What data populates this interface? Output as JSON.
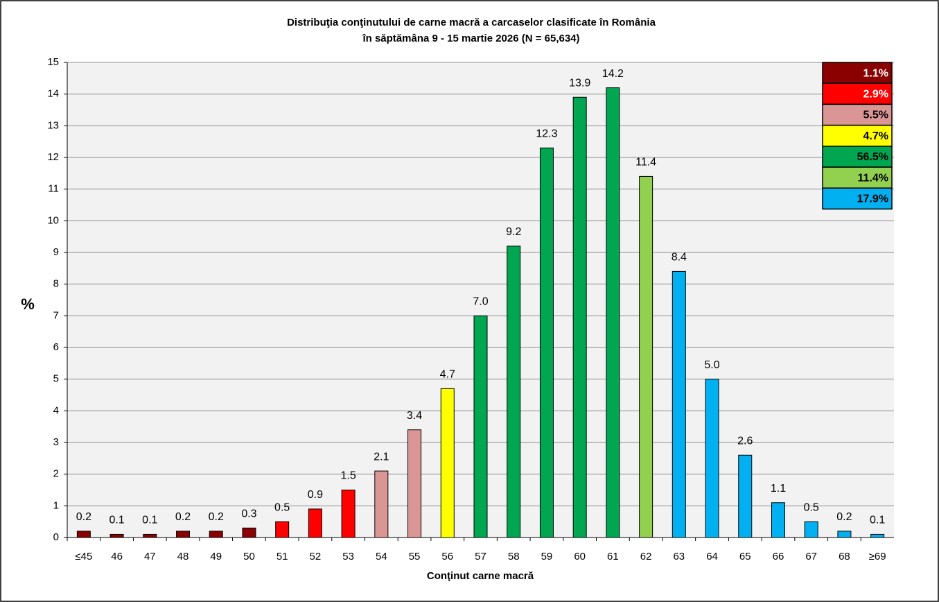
{
  "chart_data": {
    "type": "bar",
    "title": "Distribuţia conţinutului de carne macră a carcaselor clasificate în România",
    "subtitle": "în săptămâna 9 - 15 martie 2026 (N = 65,634)",
    "x_label": "Conţinut  carne macră",
    "y_label": "%",
    "categories": [
      "≤45",
      "46",
      "47",
      "48",
      "49",
      "50",
      "51",
      "52",
      "53",
      "54",
      "55",
      "56",
      "57",
      "58",
      "59",
      "60",
      "61",
      "62",
      "63",
      "64",
      "65",
      "66",
      "67",
      "68",
      "≥69"
    ],
    "values": [
      0.2,
      0.1,
      0.1,
      0.2,
      0.2,
      0.3,
      0.5,
      0.9,
      1.5,
      2.1,
      3.4,
      4.7,
      7.0,
      9.2,
      12.3,
      13.9,
      14.2,
      11.4,
      8.4,
      5.0,
      2.6,
      1.1,
      0.5,
      0.2,
      0.1
    ],
    "value_labels": [
      "0.2",
      "0.1",
      "0.1",
      "0.2",
      "0.2",
      "0.3",
      "0.5",
      "0.9",
      "1.5",
      "2.1",
      "3.4",
      "4.7",
      "7.0",
      "9.2",
      "12.3",
      "13.9",
      "14.2",
      "11.4",
      "8.4",
      "5.0",
      "2.6",
      "1.1",
      "0.5",
      "0.2",
      "0.1"
    ],
    "colors": [
      "#8b0000",
      "#8b0000",
      "#8b0000",
      "#8b0000",
      "#8b0000",
      "#8b0000",
      "#ff0000",
      "#ff0000",
      "#ff0000",
      "#da9694",
      "#da9694",
      "#ffff00",
      "#00a650",
      "#00a650",
      "#00a650",
      "#00a650",
      "#00a650",
      "#92d050",
      "#00b0f0",
      "#00b0f0",
      "#00b0f0",
      "#00b0f0",
      "#00b0f0",
      "#00b0f0",
      "#00b0f0"
    ],
    "ylim": [
      0,
      15
    ],
    "yticks": [
      0,
      1,
      2,
      3,
      4,
      5,
      6,
      7,
      8,
      9,
      10,
      11,
      12,
      13,
      14,
      15
    ],
    "grid": true,
    "group_totals": {
      "values": [
        1.1,
        2.9,
        5.5,
        4.7,
        56.5,
        11.4,
        17.9
      ],
      "value_labels": [
        "1.1%",
        "2.9%",
        "5.5%",
        "4.7%",
        "56.5%",
        "11.4%",
        "17.9%"
      ],
      "colors": [
        "#8b0000",
        "#ff0000",
        "#da9694",
        "#ffff00",
        "#00a650",
        "#92d050",
        "#00b0f0"
      ],
      "text_colors": [
        "#ffffff",
        "#ffffff",
        "#000000",
        "#000000",
        "#000000",
        "#000000",
        "#000000"
      ]
    }
  }
}
